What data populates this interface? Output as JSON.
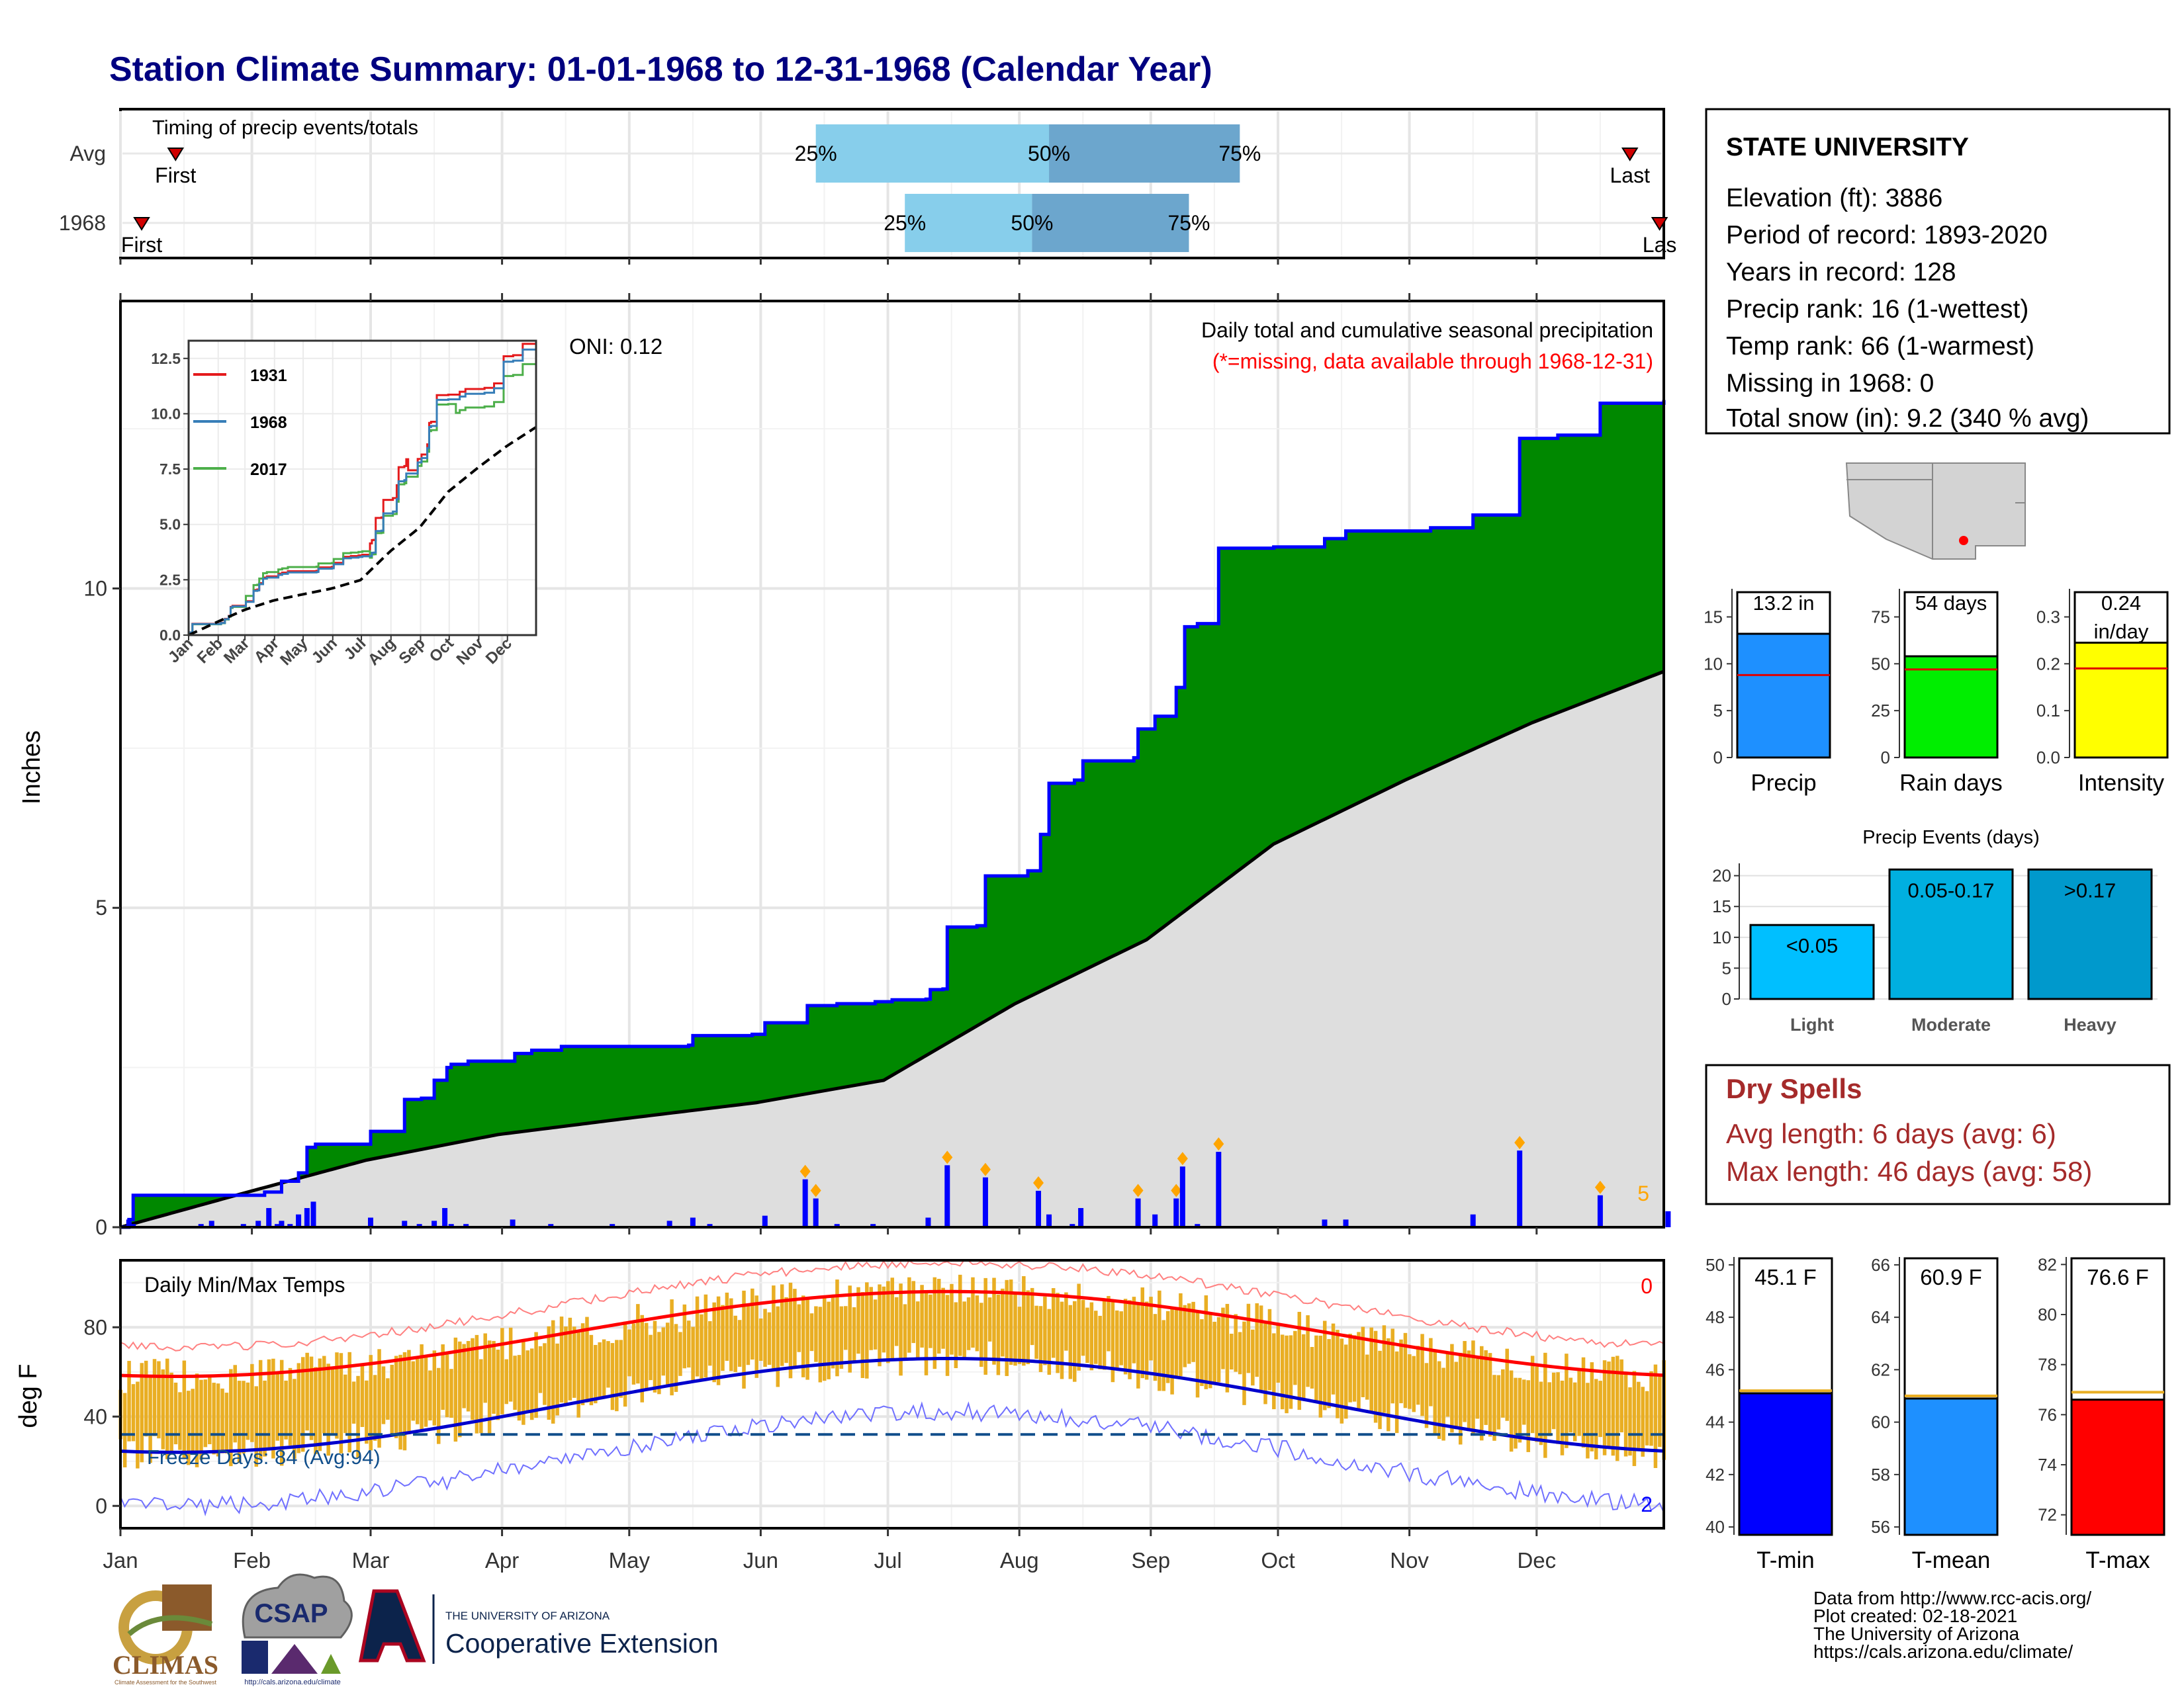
{
  "title": "Station Climate Summary: 01-01-1968 to 12-31-1968 (Calendar Year)",
  "months": [
    "Jan",
    "Feb",
    "Mar",
    "Apr",
    "May",
    "Jun",
    "Jul",
    "Aug",
    "Sep",
    "Oct",
    "Nov",
    "Dec"
  ],
  "timing_panel": {
    "label": "Timing of precip events/totals",
    "rows": [
      {
        "name": "Avg",
        "first_label": "First",
        "last_label": "Last",
        "first_day": 14,
        "last_day": 357,
        "q25_day": 165,
        "q50_day": 220,
        "q75_day": 265,
        "q25_label": "25%",
        "q50_label": "50%",
        "q75_label": "75%"
      },
      {
        "name": "1968",
        "first_label": "First",
        "last_label": "Las",
        "first_day": 6,
        "last_day": 364,
        "q25_day": 186,
        "q50_day": 216,
        "q75_day": 253,
        "q25_label": "25%",
        "q50_label": "50%",
        "q75_label": "75%"
      }
    ]
  },
  "station_box": {
    "name": "STATE UNIVERSITY",
    "lines": [
      "Elevation (ft): 3886",
      "Period of record: 1893-2020",
      "Years in record: 128",
      "Precip rank: 16 (1-wettest)",
      "Temp rank: 66 (1-warmest)",
      "Missing in 1968: 0",
      "Total snow (in): 9.2 (340 % avg)"
    ]
  },
  "main_precip": {
    "ylabel": "Inches",
    "title": "Daily total and cumulative seasonal precipitation",
    "subtitle": "(*=missing, data available through 1968-12-31)",
    "oni": "ONI: 0.12",
    "yticks": [
      "0",
      "5",
      "10"
    ],
    "ylim": [
      0,
      14.5
    ],
    "right_count": "5"
  },
  "inset": {
    "yticks": [
      "0.0",
      "2.5",
      "5.0",
      "7.5",
      "10.0",
      "12.5"
    ],
    "xticks": [
      "Jan",
      "Feb",
      "Mar",
      "Apr",
      "May",
      "Jun",
      "Jul",
      "Aug",
      "Sep",
      "Oct",
      "Nov",
      "Dec"
    ],
    "legend": [
      {
        "label": "1931",
        "color": "#e41a1c"
      },
      {
        "label": "1968",
        "color": "#377eb8"
      },
      {
        "label": "2017",
        "color": "#4daf4a"
      }
    ]
  },
  "temp_panel": {
    "ylabel": "deg F",
    "title": "Daily Min/Max Temps",
    "freeze_label": "Freeze Days: 84 (Avg:94)",
    "yticks": [
      "0",
      "40",
      "80"
    ],
    "ylim": [
      -10,
      110
    ],
    "top_right_count": "0",
    "bottom_right_count": "2"
  },
  "precip_summary": {
    "panels": [
      {
        "xlabel": "Precip",
        "value_label": "13.2 in",
        "value": 13.2,
        "avg": 8.8,
        "ymax": 18,
        "yticks": [
          "0",
          "5",
          "10",
          "15"
        ],
        "color": "#1e90ff"
      },
      {
        "xlabel": "Rain days",
        "value_label": "54 days",
        "value": 54,
        "avg": 47,
        "ymax": 90,
        "yticks": [
          "0",
          "25",
          "50",
          "75"
        ],
        "color": "#00ee00"
      },
      {
        "xlabel": "Intensity",
        "value_label": "0.24",
        "value_label2": "in/day",
        "value": 0.245,
        "avg": 0.19,
        "ymax": 0.36,
        "yticks": [
          "0.0",
          "0.1",
          "0.2",
          "0.3"
        ],
        "color": "#ffff00"
      }
    ]
  },
  "precip_events": {
    "title": "Precip Events (days)",
    "yticks": [
      "0",
      "5",
      "10",
      "15",
      "20"
    ],
    "bars": [
      {
        "category": "Light",
        "label": "<0.05",
        "value": 12,
        "color": "#00bfff"
      },
      {
        "category": "Moderate",
        "label": "0.05-0.17",
        "value": 21,
        "color": "#00afe0"
      },
      {
        "category": "Heavy",
        "label": ">0.17",
        "value": 21,
        "color": "#0099cc"
      }
    ]
  },
  "dry_spells": {
    "title": "Dry Spells",
    "line1": "Avg length: 6 days (avg: 6)",
    "line2": "Max length: 46 days (avg: 58)"
  },
  "temp_summary": {
    "panels": [
      {
        "xlabel": "T-min",
        "value_label": "45.1 F",
        "value": 45.1,
        "avg": 45.2,
        "ymin": 39.7,
        "ymax": 50.3,
        "yticks": [
          "40",
          "42",
          "44",
          "46",
          "48",
          "50"
        ],
        "color": "#0000ff"
      },
      {
        "xlabel": "T-mean",
        "value_label": "60.9 F",
        "value": 60.9,
        "avg": 61.0,
        "ymin": 55.7,
        "ymax": 66.3,
        "yticks": [
          "56",
          "58",
          "60",
          "62",
          "64",
          "66"
        ],
        "color": "#1e90ff"
      },
      {
        "xlabel": "T-max",
        "value_label": "76.6 F",
        "value": 76.6,
        "avg": 76.9,
        "ymin": 71.2,
        "ymax": 82.3,
        "yticks": [
          "72",
          "74",
          "76",
          "78",
          "80",
          "82"
        ],
        "color": "#ff0000"
      }
    ]
  },
  "footer": {
    "lines": [
      "Data from http://www.rcc-acis.org/",
      "Plot created: 02-18-2021",
      "The University of Arizona",
      "https://cals.arizona.edu/climate/"
    ],
    "logo_climas": "CLIMAS",
    "logo_climas_sub": "Climate Assessment for the Southwest",
    "logo_csap": "CSAP",
    "logo_csap_sub": "http://cals.arizona.edu/climate",
    "logo_ua_small": "THE UNIVERSITY OF ARIZONA",
    "logo_ua_big": "Cooperative Extension"
  },
  "chart_data": {
    "type": "area",
    "title": "Daily total and cumulative seasonal precipitation",
    "ylabel": "Inches",
    "ylim": [
      0,
      14.5
    ],
    "x_units": "day of year",
    "cumulative_1968": [
      [
        1,
        0
      ],
      [
        6,
        0.12
      ],
      [
        8,
        0.5
      ],
      [
        70,
        0.55
      ],
      [
        78,
        0.72
      ],
      [
        86,
        0.85
      ],
      [
        90,
        1.25
      ],
      [
        93,
        1.3
      ],
      [
        120,
        1.5
      ],
      [
        136,
        2.0
      ],
      [
        143,
        2.02
      ],
      [
        150,
        2.3
      ],
      [
        155,
        2.5
      ],
      [
        158,
        2.55
      ],
      [
        165,
        2.6
      ],
      [
        185,
        2.6
      ],
      [
        187,
        2.72
      ],
      [
        195,
        2.77
      ],
      [
        210,
        2.83
      ],
      [
        270,
        2.85
      ],
      [
        272,
        3.0
      ],
      [
        300,
        3.02
      ],
      [
        306,
        3.2
      ],
      [
        325,
        3.47
      ],
      [
        340,
        3.5
      ],
      [
        357,
        3.53
      ],
      [
        365,
        3.56
      ],
      [
        381,
        3.57
      ],
      [
        383,
        3.72
      ],
      [
        390,
        3.73
      ],
      [
        392,
        4.7
      ],
      [
        406,
        4.72
      ],
      [
        410,
        5.5
      ],
      [
        430,
        5.58
      ],
      [
        435,
        6.15
      ],
      [
        440,
        6.95
      ],
      [
        451,
        7.0
      ],
      [
        455,
        7.3
      ],
      [
        480,
        7.35
      ],
      [
        482,
        7.8
      ],
      [
        490,
        8.0
      ],
      [
        500,
        8.45
      ],
      [
        503,
        9.4
      ],
      [
        510,
        9.45
      ],
      [
        520,
        10.63
      ],
      [
        545,
        10.65
      ],
      [
        570,
        10.78
      ],
      [
        580,
        10.9
      ],
      [
        620,
        10.95
      ],
      [
        640,
        11.15
      ],
      [
        660,
        11.15
      ],
      [
        662,
        12.35
      ],
      [
        680,
        12.4
      ],
      [
        700,
        12.9
      ],
      [
        730,
        12.95
      ],
      [
        732,
        13.2
      ]
    ],
    "avg_cumulative": [
      [
        1,
        0
      ],
      [
        31,
        0.55
      ],
      [
        59,
        1.05
      ],
      [
        90,
        1.45
      ],
      [
        120,
        1.7
      ],
      [
        151,
        1.95
      ],
      [
        181,
        2.3
      ],
      [
        212,
        3.5
      ],
      [
        243,
        4.5
      ],
      [
        273,
        6.0
      ],
      [
        304,
        7.0
      ],
      [
        334,
        7.9
      ],
      [
        365,
        8.7
      ]
    ],
    "daily_precip_1968": [
      [
        6,
        0.12
      ],
      [
        8,
        0.05
      ],
      [
        40,
        0.05
      ],
      [
        45,
        0.1
      ],
      [
        60,
        0.05
      ],
      [
        67,
        0.1
      ],
      [
        72,
        0.3
      ],
      [
        76,
        0.05
      ],
      [
        78,
        0.1
      ],
      [
        82,
        0.05
      ],
      [
        86,
        0.2
      ],
      [
        90,
        0.3
      ],
      [
        93,
        0.4
      ],
      [
        120,
        0.15
      ],
      [
        136,
        0.1
      ],
      [
        143,
        0.05
      ],
      [
        150,
        0.1
      ],
      [
        155,
        0.3
      ],
      [
        158,
        0.05
      ],
      [
        165,
        0.05
      ],
      [
        187,
        0.12
      ],
      [
        205,
        0.05
      ],
      [
        234,
        0.05
      ],
      [
        261,
        0.1
      ],
      [
        272,
        0.15
      ],
      [
        280,
        0.05
      ],
      [
        306,
        0.18
      ],
      [
        325,
        0.75
      ],
      [
        330,
        0.45
      ],
      [
        340,
        0.05
      ],
      [
        357,
        0.05
      ],
      [
        383,
        0.15
      ],
      [
        392,
        0.97
      ],
      [
        410,
        0.78
      ],
      [
        435,
        0.57
      ],
      [
        440,
        0.2
      ],
      [
        451,
        0.05
      ],
      [
        455,
        0.3
      ],
      [
        482,
        0.45
      ],
      [
        490,
        0.2
      ],
      [
        500,
        0.45
      ],
      [
        503,
        0.95
      ],
      [
        510,
        0.05
      ],
      [
        520,
        1.18
      ],
      [
        570,
        0.12
      ],
      [
        580,
        0.12
      ],
      [
        640,
        0.2
      ],
      [
        662,
        1.2
      ],
      [
        700,
        0.5
      ],
      [
        732,
        0.25
      ]
    ]
  }
}
